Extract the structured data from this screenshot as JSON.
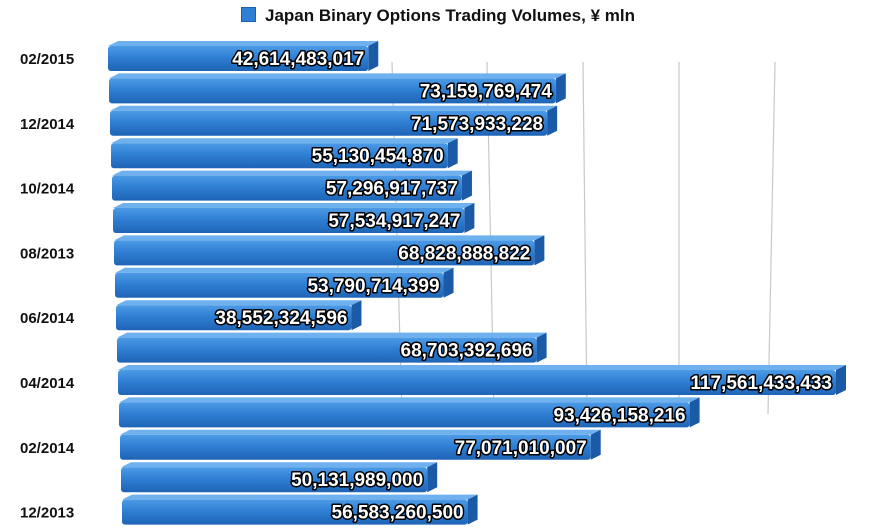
{
  "chart_data": {
    "type": "bar",
    "orientation": "horizontal",
    "title": "Japan Binary Options Trading Volumes, ¥ mln",
    "legend": {
      "position": "top",
      "entries": [
        "Japan Binary Options Trading Volumes, ¥ mln"
      ]
    },
    "grid": true,
    "categories": [
      "02/2015",
      "",
      "12/2014",
      "",
      "10/2014",
      "",
      "08/2013",
      "",
      "06/2014",
      "",
      "04/2014",
      "",
      "02/2014",
      "",
      "12/2013"
    ],
    "values": [
      42614483017,
      73159769474,
      71573933228,
      55130454870,
      57296917737,
      57534917247,
      68828888822,
      53790714399,
      38552324596,
      68703392696,
      117561433433,
      93426158216,
      77071010007,
      50131989000,
      56583260500
    ],
    "value_labels": [
      "42,614,483,017",
      "73,159,769,474",
      "71,573,933,228",
      "55,130,454,870",
      "57,296,917,737",
      "57,534,917,247",
      "68,828,888,822",
      "53,790,714,399",
      "38,552,324,596",
      "68,703,392,696",
      "117,561,433,433",
      "93,426,158,216",
      "77,071,010,007",
      "50,131,989,000",
      "56,583,260,500"
    ],
    "colors": {
      "bar": "#2f7fd4",
      "bar_top": "#6fb0ee",
      "bar_side": "#1a5aa6",
      "grid": "#c8c8c8"
    }
  }
}
